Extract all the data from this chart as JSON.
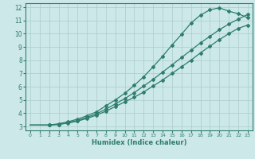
{
  "xlabel": "Humidex (Indice chaleur)",
  "background_color": "#cce8e8",
  "grid_color": "#aacccc",
  "line_color": "#2e7d6e",
  "xlim": [
    -0.5,
    23.5
  ],
  "ylim": [
    2.7,
    12.3
  ],
  "xticks": [
    0,
    1,
    2,
    3,
    4,
    5,
    6,
    7,
    8,
    9,
    10,
    11,
    12,
    13,
    14,
    15,
    16,
    17,
    18,
    19,
    20,
    21,
    22,
    23
  ],
  "yticks": [
    3,
    4,
    5,
    6,
    7,
    8,
    9,
    10,
    11,
    12
  ],
  "curve_peak_x": [
    0,
    1,
    2,
    3,
    4,
    5,
    6,
    7,
    8,
    9,
    10,
    11,
    12,
    13,
    14,
    15,
    16,
    17,
    18,
    19,
    20,
    21,
    22,
    23
  ],
  "curve_peak_y": [
    3.1,
    3.1,
    3.1,
    3.2,
    3.35,
    3.55,
    3.8,
    4.1,
    4.55,
    5.0,
    5.5,
    6.1,
    6.75,
    7.5,
    8.3,
    9.15,
    9.95,
    10.8,
    11.4,
    11.8,
    11.95,
    11.7,
    11.5,
    11.2
  ],
  "curve_low_x": [
    0,
    1,
    2,
    3,
    4,
    5,
    6,
    7,
    8,
    9,
    10,
    11,
    12,
    13,
    14,
    15,
    16,
    17,
    18,
    19,
    20,
    21,
    22,
    23
  ],
  "curve_low_y": [
    3.1,
    3.1,
    3.1,
    3.15,
    3.25,
    3.4,
    3.6,
    3.85,
    4.15,
    4.5,
    4.85,
    5.2,
    5.6,
    6.05,
    6.5,
    7.0,
    7.5,
    8.0,
    8.55,
    9.05,
    9.55,
    10.0,
    10.4,
    10.65
  ],
  "curve_mid_x": [
    0,
    1,
    2,
    3,
    4,
    5,
    6,
    7,
    8,
    9,
    10,
    11,
    12,
    13,
    14,
    15,
    16,
    17,
    18,
    19,
    20,
    21,
    22,
    23
  ],
  "curve_mid_y": [
    3.1,
    3.1,
    3.1,
    3.15,
    3.28,
    3.45,
    3.68,
    3.95,
    4.3,
    4.7,
    5.1,
    5.55,
    6.05,
    6.55,
    7.1,
    7.65,
    8.2,
    8.75,
    9.3,
    9.8,
    10.3,
    10.72,
    11.1,
    11.45
  ],
  "marker_x": [
    2,
    3,
    4,
    5,
    6,
    7,
    8,
    9,
    10,
    11,
    12,
    13,
    14,
    15,
    16,
    17,
    18,
    19,
    20,
    21,
    22,
    23
  ]
}
